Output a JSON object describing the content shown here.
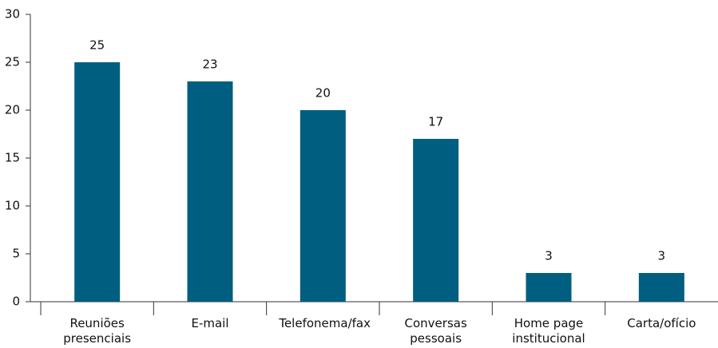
{
  "chart_data": {
    "type": "bar",
    "categories": [
      "Reuniões presenciais",
      "E-mail",
      "Telefonema/fax",
      "Conversas pessoais",
      "Home page institucional",
      "Carta/ofício"
    ],
    "values": [
      25,
      23,
      20,
      17,
      3,
      3
    ],
    "color": "#005e80",
    "ylim": [
      0,
      30
    ],
    "yticks": [
      0,
      5,
      10,
      15,
      20,
      25,
      30
    ],
    "grid": false
  }
}
